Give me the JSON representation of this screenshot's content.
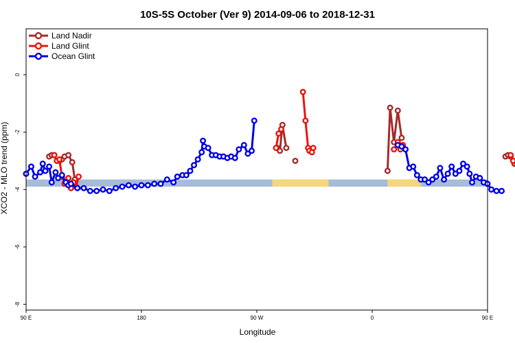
{
  "chart_data": {
    "type": "line",
    "title": "10S-5S October (Ver 9)   2014-09-06 to 2018-12-31",
    "xlabel": "Longitude",
    "ylabel": "XCO2 - MLO trend (ppm)",
    "xlim": [
      90,
      450
    ],
    "ylim": [
      -8.2,
      1.6
    ],
    "x_ticks": [
      {
        "value": 90,
        "label": "90 E"
      },
      {
        "value": 180,
        "label": "180"
      },
      {
        "value": 270,
        "label": "90 W"
      },
      {
        "value": 360,
        "label": "0"
      },
      {
        "value": 450,
        "label": "90 E"
      },
      {
        "value": 540,
        "label": "180"
      }
    ],
    "y_ticks": [
      {
        "value": 0,
        "label": "0"
      },
      {
        "value": -2,
        "label": "-2"
      },
      {
        "value": -4,
        "label": "-4"
      },
      {
        "value": -6,
        "label": "-6"
      },
      {
        "value": -8,
        "label": "-8"
      }
    ],
    "legend_position": "top-left",
    "band": {
      "y_low": -3.9,
      "y_high": -3.65,
      "color": "#a6bcd8",
      "land_color": "#f5d67a",
      "land_ranges": [
        [
          282,
          326
        ],
        [
          372,
          398
        ]
      ]
    },
    "series": [
      {
        "name": "Land Nadir",
        "color": "#a52a2a",
        "segments": [
          [
            [
              108,
              -2.85
            ],
            [
              110,
              -2.8
            ],
            [
              112,
              -2.8
            ],
            [
              114,
              -3.0
            ],
            [
              116,
              -3.0
            ],
            [
              118,
              -2.95
            ],
            [
              120,
              -2.85
            ],
            [
              123,
              -2.8
            ],
            [
              126,
              -3.05
            ],
            [
              128,
              -3.65
            ]
          ],
          [
            [
              286,
              -2.55
            ],
            [
              288,
              -2.65
            ],
            [
              290,
              -1.75
            ],
            [
              293,
              -2.55
            ]
          ],
          [
            [
              300,
              -3.0
            ]
          ],
          [
            [
              372,
              -3.35
            ],
            [
              374,
              -1.15
            ],
            [
              377,
              -2.35
            ],
            [
              380,
              -1.25
            ],
            [
              383,
              -2.2
            ]
          ],
          [
            [
              464,
              -2.85
            ],
            [
              466,
              -2.8
            ],
            [
              468,
              -2.85
            ],
            [
              471,
              -3.1
            ],
            [
              473,
              -3.0
            ],
            [
              475,
              -2.85
            ],
            [
              478,
              -2.8
            ],
            [
              481,
              -3.05
            ],
            [
              483,
              -3.65
            ]
          ]
        ]
      },
      {
        "name": "Land Glint",
        "color": "#e8140c",
        "segments": [
          [
            [
              112,
              -2.8
            ],
            [
              114,
              -3.0
            ],
            [
              116,
              -2.95
            ],
            [
              118,
              -3.55
            ],
            [
              120,
              -3.8
            ],
            [
              123,
              -3.6
            ],
            [
              125,
              -3.95
            ],
            [
              127,
              -3.75
            ],
            [
              129,
              -3.9
            ],
            [
              131,
              -3.55
            ]
          ],
          [
            [
              285,
              -2.55
            ],
            [
              287,
              -2.05
            ],
            [
              289,
              -1.9
            ]
          ],
          [
            [
              306,
              -0.6
            ],
            [
              308,
              -1.6
            ],
            [
              310,
              -2.55
            ],
            [
              311,
              -2.65
            ],
            [
              313,
              -2.7
            ],
            [
              314,
              -2.55
            ]
          ],
          [
            [
              377,
              -2.6
            ],
            [
              380,
              -2.35
            ],
            [
              382,
              -2.6
            ],
            [
              384,
              -2.45
            ]
          ],
          [
            [
              468,
              -2.8
            ],
            [
              470,
              -3.0
            ],
            [
              473,
              -3.1
            ],
            [
              475,
              -3.05
            ],
            [
              478,
              -3.35
            ],
            [
              480,
              -3.6
            ],
            [
              482,
              -3.55
            ],
            [
              484,
              -3.95
            ],
            [
              486,
              -3.9
            ],
            [
              487,
              -3.55
            ]
          ]
        ]
      },
      {
        "name": "Ocean Glint",
        "color": "#0000e6",
        "segments": [
          [
            [
              90,
              -3.45
            ],
            [
              94,
              -3.2
            ],
            [
              97,
              -3.55
            ],
            [
              101,
              -3.4
            ],
            [
              103,
              -3.1
            ],
            [
              105,
              -3.35
            ],
            [
              108,
              -3.2
            ],
            [
              110,
              -3.75
            ],
            [
              113,
              -3.4
            ],
            [
              115,
              -3.6
            ],
            [
              118,
              -3.5
            ],
            [
              121,
              -3.75
            ],
            [
              123,
              -3.85
            ],
            [
              125,
              -3.8
            ],
            [
              130,
              -3.95
            ],
            [
              135,
              -3.95
            ],
            [
              140,
              -4.05
            ],
            [
              145,
              -4.05
            ],
            [
              150,
              -4.0
            ],
            [
              155,
              -4.05
            ],
            [
              160,
              -3.95
            ],
            [
              165,
              -3.9
            ],
            [
              170,
              -3.85
            ],
            [
              175,
              -3.9
            ],
            [
              180,
              -3.85
            ],
            [
              185,
              -3.85
            ],
            [
              190,
              -3.8
            ],
            [
              195,
              -3.8
            ],
            [
              200,
              -3.65
            ],
            [
              205,
              -3.75
            ],
            [
              208,
              -3.55
            ],
            [
              212,
              -3.5
            ],
            [
              215,
              -3.5
            ],
            [
              218,
              -3.35
            ],
            [
              221,
              -3.15
            ],
            [
              224,
              -2.95
            ],
            [
              227,
              -2.7
            ],
            [
              228,
              -2.3
            ]
          ],
          [
            [
              229,
              -2.5
            ],
            [
              232,
              -2.55
            ],
            [
              235,
              -2.8
            ],
            [
              238,
              -2.8
            ],
            [
              241,
              -2.85
            ],
            [
              244,
              -2.85
            ],
            [
              247,
              -2.9
            ],
            [
              250,
              -2.85
            ],
            [
              253,
              -2.9
            ],
            [
              256,
              -2.6
            ],
            [
              260,
              -2.45
            ],
            [
              263,
              -2.75
            ],
            [
              266,
              -2.65
            ],
            [
              268,
              -1.6
            ]
          ],
          [
            [
              380,
              -2.45
            ],
            [
              383,
              -2.5
            ],
            [
              386,
              -2.6
            ],
            [
              389,
              -3.25
            ],
            [
              392,
              -3.2
            ],
            [
              395,
              -3.5
            ],
            [
              398,
              -3.65
            ],
            [
              401,
              -3.65
            ],
            [
              404,
              -3.75
            ],
            [
              407,
              -3.65
            ],
            [
              410,
              -3.55
            ],
            [
              413,
              -3.25
            ],
            [
              416,
              -3.65
            ],
            [
              419,
              -3.45
            ],
            [
              422,
              -3.2
            ],
            [
              425,
              -3.45
            ],
            [
              428,
              -3.35
            ],
            [
              431,
              -3.1
            ],
            [
              434,
              -3.2
            ],
            [
              436,
              -3.45
            ],
            [
              438,
              -3.75
            ],
            [
              441,
              -3.55
            ],
            [
              444,
              -3.6
            ],
            [
              447,
              -3.75
            ],
            [
              450,
              -3.8
            ],
            [
              453,
              -4.0
            ],
            [
              457,
              -4.05
            ],
            [
              461,
              -4.05
            ]
          ]
        ]
      }
    ]
  }
}
